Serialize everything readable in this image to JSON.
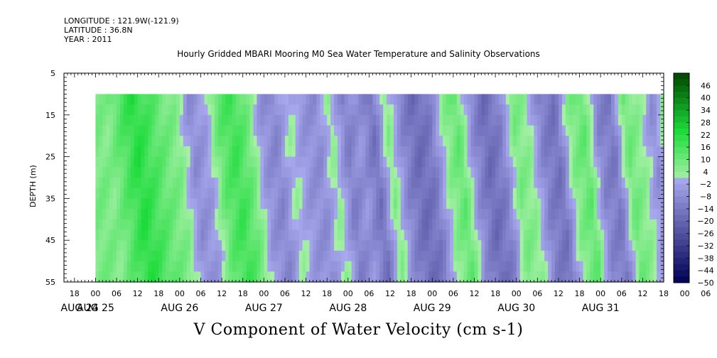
{
  "header": {
    "longitude": "LONGITUDE : 121.9W(-121.9)",
    "latitude": "LATITUDE : 36.8N",
    "year": "YEAR : 2011",
    "title": "Hourly Gridded MBARI Mooring M0 Sea Water Temperature and Salinity Observations"
  },
  "chart_data": {
    "type": "heatmap",
    "title": "Hourly Gridded MBARI Mooring M0 Sea Water Temperature and Salinity Observations",
    "xlabel": "V Component of Water Velocity (cm s-1)",
    "ylabel": "DEPTH (m)",
    "x_hours": [
      "18",
      "00",
      "06",
      "12",
      "18",
      "00",
      "06",
      "12",
      "18",
      "00",
      "06",
      "12",
      "18",
      "00",
      "06",
      "12",
      "18",
      "00",
      "06",
      "12",
      "18",
      "00",
      "06",
      "12",
      "18",
      "00",
      "06",
      "12",
      "18",
      "00",
      "06",
      "12"
    ],
    "x_days": [
      "AUG 24",
      "AUG 25",
      "AUG 26",
      "AUG 27",
      "AUG 28",
      "AUG 29",
      "AUG 30",
      "AUG 31"
    ],
    "xlim_hours_from_aug24_00": [
      15,
      186
    ],
    "data_xlim_hours_from_aug24_00": [
      24,
      186
    ],
    "y_ticks": [
      5,
      15,
      25,
      35,
      45,
      55
    ],
    "ylim": [
      5,
      55
    ],
    "y_reversed": true,
    "data_depth_range": [
      10,
      55
    ],
    "colorbar_levels": [
      "46",
      "40",
      "34",
      "28",
      "22",
      "16",
      "10",
      "4",
      "-2",
      "-8",
      "-14",
      "-20",
      "-26",
      "-32",
      "-38",
      "-44",
      "-50"
    ],
    "colorbar_range": [
      -50,
      52
    ],
    "color_low": "#000055",
    "color_mid": "#a8a8ee",
    "color_pos_low": "#a8f0a8",
    "color_high": "#004400",
    "time_profile_hours": [
      24,
      26,
      30,
      34,
      38,
      42,
      46,
      50,
      54,
      58,
      62,
      66,
      70,
      74,
      78,
      82,
      86,
      90,
      94,
      98,
      102,
      106,
      110,
      114,
      118,
      122,
      126,
      130,
      134,
      138,
      142,
      146,
      150,
      154,
      158,
      162,
      166,
      170,
      174,
      178,
      182,
      186
    ],
    "time_profile_values": [
      8,
      6,
      14,
      22,
      16,
      10,
      6,
      -8,
      -4,
      12,
      18,
      10,
      -6,
      -10,
      2,
      -6,
      -8,
      4,
      -12,
      -6,
      -16,
      6,
      -10,
      -18,
      -14,
      4,
      12,
      -8,
      -18,
      -12,
      8,
      4,
      -12,
      -16,
      6,
      12,
      -10,
      -14,
      10,
      4,
      -8,
      10
    ]
  },
  "colors": {
    "background": "#ffffff",
    "axis": "#000000"
  }
}
